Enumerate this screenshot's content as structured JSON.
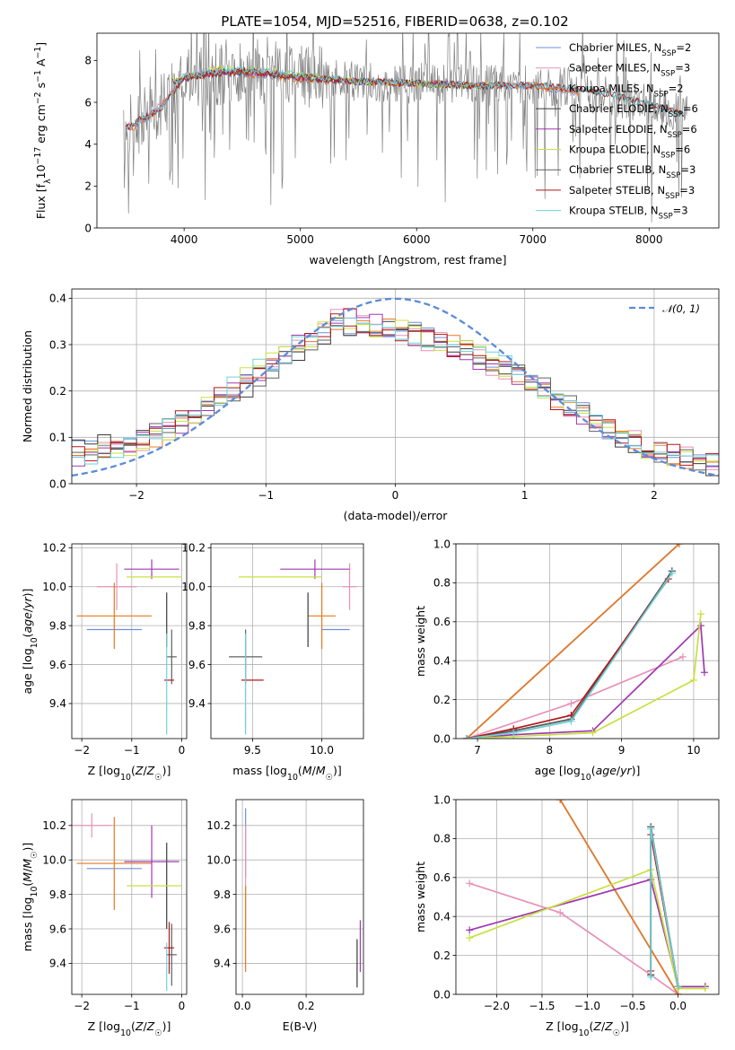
{
  "title": "PLATE=1054, MJD=52516, FIBERID=0638, z=0.102",
  "colors": {
    "chabrier_miles": "#6f8fdc",
    "salpeter_miles": "#e890b8",
    "kroupa_miles": "#e87820",
    "chabrier_elodie": "#3a3a3a",
    "salpeter_elodie": "#a038b0",
    "kroupa_elodie": "#c8e040",
    "chabrier_stelib": "#606060",
    "salpeter_stelib": "#b01818",
    "kroupa_stelib": "#6cd0d8",
    "observed": "#808080",
    "gaussian": "#5b8bd8"
  },
  "panels": {
    "spectrum": {
      "xlabel": "wavelength [Angstrom, rest frame]",
      "ylabel": "Flux [f$_\\lambda$10$^{-17}$ erg cm$^{-2}$ s$^{-1}$ A$^{-1}$]",
      "xticks": [
        "4000",
        "5000",
        "6000",
        "7000",
        "8000"
      ],
      "yticks": [
        "0",
        "2",
        "4",
        "6",
        "8"
      ],
      "legend": [
        "Chabrier MILES, N$_{SSP}$=2",
        "Salpeter MILES, N$_{SSP}$=3",
        "Kroupa MILES, N$_{SSP}$=2",
        "Chabrier ELODIE, N$_{SSP}$=6",
        "Salpeter ELODIE, N$_{SSP}$=6",
        "Kroupa ELODIE, N$_{SSP}$=6",
        "Chabrier STELIB, N$_{SSP}$=3",
        "Salpeter STELIB, N$_{SSP}$=3",
        "Kroupa STELIB, N$_{SSP}$=3"
      ]
    },
    "residuals": {
      "xlabel": "(data-model)/error",
      "ylabel": "Normed distribution",
      "xticks": [
        "−2",
        "−1",
        "0",
        "1",
        "2"
      ],
      "yticks": [
        "0.0",
        "0.1",
        "0.2",
        "0.3",
        "0.4"
      ],
      "legend": "𝒩(0, 1)"
    },
    "age_vs_z": {
      "xlabel": "Z [log$_{10}$($Z/Z_\\odot$)]",
      "ylabel": "age  [log$_{10}$($age/yr$)]",
      "xticks": [
        "−2",
        "−1",
        "0"
      ],
      "yticks": [
        "9.4",
        "9.6",
        "9.8",
        "10.0",
        "10.2"
      ]
    },
    "age_vs_mass": {
      "xlabel": "mass [log$_{10}$($M/M_\\odot$)]",
      "xticks": [
        "9.5",
        "10.0"
      ],
      "yticks": [
        "9.4",
        "9.6",
        "9.8",
        "10.0",
        "10.2"
      ]
    },
    "mw_vs_age": {
      "xlabel": "age  [log$_{10}$($age/yr$)]",
      "ylabel": "mass weight",
      "xticks": [
        "7",
        "8",
        "9",
        "10"
      ],
      "yticks": [
        "0.0",
        "0.2",
        "0.4",
        "0.6",
        "0.8",
        "1.0"
      ]
    },
    "mass_vs_z": {
      "xlabel": "Z [log$_{10}$($Z/Z_\\odot$)]",
      "ylabel": "mass [log$_{10}$($M/M_\\odot$)]",
      "xticks": [
        "−2",
        "−1",
        "0"
      ],
      "yticks": [
        "9.4",
        "9.6",
        "9.8",
        "10.0",
        "10.2"
      ]
    },
    "mass_vs_ebv": {
      "xlabel": "E(B-V)",
      "xticks": [
        "0.0",
        "0.2"
      ],
      "yticks": [
        "9.4",
        "9.6",
        "9.8",
        "10.0",
        "10.2"
      ]
    },
    "mw_vs_z": {
      "xlabel": "Z [log$_{10}$($Z/Z_\\odot$)]",
      "ylabel": "mass weight",
      "xticks": [
        "−2.0",
        "−1.5",
        "−1.0",
        "−0.5",
        "0.0"
      ],
      "yticks": [
        "0.0",
        "0.2",
        "0.4",
        "0.6",
        "0.8",
        "1.0"
      ]
    }
  },
  "chart_data": [
    {
      "type": "line",
      "panel": "spectrum",
      "xlim": [
        3250,
        8600
      ],
      "ylim": [
        0,
        9.3
      ],
      "series": [
        {
          "name": "Chabrier MILES, N$_{SSP}$=2",
          "x": [
            3500,
            3600,
            3800,
            4000,
            4300,
            4700,
            5000,
            5500,
            6000,
            6500,
            7000,
            7400
          ],
          "y": [
            4.7,
            4.9,
            5.8,
            7.2,
            7.4,
            7.3,
            7.1,
            7.0,
            6.9,
            6.8,
            6.8,
            6.4
          ]
        },
        {
          "name": "Salpeter MILES, N$_{SSP}$=3",
          "x": [
            3500,
            3600,
            3800,
            4000,
            4300,
            4700,
            5000,
            5500,
            6000,
            6500,
            7000,
            7400
          ],
          "y": [
            4.8,
            5.0,
            5.9,
            7.3,
            7.5,
            7.4,
            7.2,
            7.0,
            6.9,
            6.8,
            6.8,
            6.5
          ]
        },
        {
          "name": "Kroupa MILES, N$_{SSP}$=2",
          "x": [
            3500,
            3600,
            3800,
            4000,
            4300,
            4700,
            5000,
            5500,
            6000,
            6500,
            7000,
            7400
          ],
          "y": [
            4.7,
            4.9,
            5.8,
            7.2,
            7.4,
            7.3,
            7.1,
            7.0,
            6.9,
            6.8,
            6.8,
            6.4
          ]
        },
        {
          "name": "Chabrier ELODIE, N$_{SSP}$=6",
          "x": [
            3900,
            4300,
            4700,
            5000,
            5500,
            6000,
            6500,
            6800
          ],
          "y": [
            7.0,
            7.5,
            7.4,
            7.2,
            7.0,
            6.9,
            6.8,
            6.8
          ]
        },
        {
          "name": "Salpeter ELODIE, N$_{SSP}$=6",
          "x": [
            3900,
            4300,
            4700,
            5000,
            5500,
            6000,
            6500,
            6800
          ],
          "y": [
            7.0,
            7.5,
            7.4,
            7.2,
            7.0,
            6.9,
            6.8,
            6.8
          ]
        },
        {
          "name": "Kroupa ELODIE, N$_{SSP}$=6",
          "x": [
            3900,
            4300,
            4700,
            5000,
            5500,
            6000,
            6500,
            6800
          ],
          "y": [
            7.1,
            7.6,
            7.5,
            7.3,
            7.0,
            6.9,
            6.8,
            6.8
          ]
        },
        {
          "name": "Chabrier STELIB, N$_{SSP}$=3",
          "x": [
            3500,
            3800,
            4000,
            4500,
            5000,
            5500,
            6000,
            6500,
            7000,
            7500,
            8000,
            8300
          ],
          "y": [
            4.8,
            5.7,
            7.2,
            7.5,
            7.2,
            7.0,
            6.9,
            6.8,
            6.8,
            6.6,
            5.9,
            5.4
          ]
        },
        {
          "name": "Salpeter STELIB, N$_{SSP}$=3",
          "x": [
            3500,
            3800,
            4000,
            4500,
            5000,
            5500,
            6000,
            6500,
            7000,
            7500,
            8000,
            8300
          ],
          "y": [
            4.8,
            5.7,
            7.2,
            7.5,
            7.2,
            7.0,
            6.9,
            6.8,
            6.8,
            6.6,
            5.9,
            5.4
          ]
        },
        {
          "name": "Kroupa STELIB, N$_{SSP}$=3",
          "x": [
            3500,
            3800,
            4000,
            4500,
            5000,
            5500,
            6000,
            6500,
            7000,
            7500,
            8000,
            8300
          ],
          "y": [
            4.8,
            5.7,
            7.3,
            7.6,
            7.3,
            7.0,
            6.9,
            6.8,
            6.8,
            6.6,
            5.9,
            5.4
          ]
        }
      ]
    },
    {
      "type": "line",
      "panel": "residuals",
      "xlim": [
        -2.5,
        2.5
      ],
      "ylim": [
        0,
        0.42
      ],
      "bin_width": 0.1,
      "series": [
        {
          "name": "𝒩(0, 1)",
          "function": "gaussian",
          "mu": 0,
          "sigma": 1
        },
        {
          "name": "Chabrier MILES, N$_{SSP}$=2",
          "bin_centers": [
            -2.4,
            -2.0,
            -1.6,
            -1.2,
            -0.8,
            -0.4,
            0.0,
            0.4,
            0.8,
            1.2,
            1.6,
            2.0,
            2.4
          ],
          "values": [
            0.07,
            0.1,
            0.15,
            0.2,
            0.28,
            0.34,
            0.34,
            0.31,
            0.26,
            0.2,
            0.12,
            0.07,
            0.04
          ]
        },
        {
          "name": "Salpeter MILES, N$_{SSP}$=3",
          "bin_centers": [
            -2.4,
            -2.0,
            -1.6,
            -1.2,
            -0.8,
            -0.4,
            0.0,
            0.4,
            0.8,
            1.2,
            1.6,
            2.0,
            2.4
          ],
          "values": [
            0.06,
            0.09,
            0.14,
            0.21,
            0.29,
            0.36,
            0.33,
            0.3,
            0.25,
            0.19,
            0.13,
            0.07,
            0.05
          ]
        },
        {
          "name": "Kroupa MILES, N$_{SSP}$=2",
          "bin_centers": [
            -2.4,
            -2.0,
            -1.6,
            -1.2,
            -0.8,
            -0.4,
            0.0,
            0.4,
            0.8,
            1.2,
            1.6,
            2.0,
            2.4
          ],
          "values": [
            0.05,
            0.08,
            0.14,
            0.22,
            0.29,
            0.36,
            0.33,
            0.31,
            0.26,
            0.19,
            0.12,
            0.07,
            0.04
          ]
        }
      ]
    },
    {
      "type": "scatter",
      "panel": "age_vs_z",
      "xlim": [
        -2.2,
        0.1
      ],
      "ylim": [
        9.22,
        10.22
      ],
      "points": [
        {
          "x": -1.35,
          "y": 9.78,
          "xerr": 0.55,
          "yerr": 0.0
        },
        {
          "x": -1.3,
          "y": 10.0,
          "xerr": 0.4,
          "yerr": 0.12
        },
        {
          "x": -1.35,
          "y": 9.85,
          "xerr": 0.75,
          "yerr": 0.17
        },
        {
          "x": -0.3,
          "y": 9.83,
          "xerr": 0.0,
          "yerr": 0.14
        },
        {
          "x": -0.6,
          "y": 10.09,
          "xerr": 0.55,
          "yerr": 0.05
        },
        {
          "x": -0.55,
          "y": 10.05,
          "xerr": 0.55,
          "yerr": 0.0
        },
        {
          "x": -0.2,
          "y": 9.64,
          "xerr": 0.1,
          "yerr": 0.14
        },
        {
          "x": -0.25,
          "y": 9.52,
          "xerr": 0.1,
          "yerr": 0.0
        },
        {
          "x": -0.3,
          "y": 9.5,
          "xerr": 0.0,
          "yerr": 0.26
        }
      ]
    },
    {
      "type": "scatter",
      "panel": "age_vs_mass",
      "xlim": [
        9.2,
        10.3
      ],
      "ylim": [
        9.22,
        10.22
      ],
      "points": [
        {
          "x": 10.1,
          "y": 9.78,
          "xerr": 0.1,
          "yerr": 0.0
        },
        {
          "x": 10.2,
          "y": 10.0,
          "xerr": 0.05,
          "yerr": 0.12
        },
        {
          "x": 10.0,
          "y": 9.85,
          "xerr": 0.1,
          "yerr": 0.17
        },
        {
          "x": 9.9,
          "y": 9.83,
          "xerr": 0.0,
          "yerr": 0.14
        },
        {
          "x": 9.95,
          "y": 10.09,
          "xerr": 0.25,
          "yerr": 0.05
        },
        {
          "x": 9.7,
          "y": 10.05,
          "xerr": 0.3,
          "yerr": 0.0
        },
        {
          "x": 9.45,
          "y": 9.64,
          "xerr": 0.12,
          "yerr": 0.14
        },
        {
          "x": 9.5,
          "y": 9.52,
          "xerr": 0.08,
          "yerr": 0.0
        },
        {
          "x": 9.45,
          "y": 9.5,
          "xerr": 0.0,
          "yerr": 0.26
        }
      ]
    },
    {
      "type": "line",
      "panel": "mw_vs_age",
      "xlim": [
        6.7,
        10.35
      ],
      "ylim": [
        0,
        1
      ],
      "series": [
        {
          "name": "Chabrier MILES, N$_{SSP}$=2",
          "x": [
            6.85,
            9.8
          ],
          "y": [
            0.0,
            1.0
          ]
        },
        {
          "name": "Salpeter MILES, N$_{SSP}$=3",
          "x": [
            6.85,
            8.3,
            9.85
          ],
          "y": [
            0.0,
            0.18,
            0.42
          ]
        },
        {
          "name": "Kroupa MILES, N$_{SSP}$=2",
          "x": [
            6.85,
            9.8
          ],
          "y": [
            0.0,
            1.0
          ]
        },
        {
          "name": "Chabrier ELODIE, N$_{SSP}$=6",
          "x": [
            6.85,
            7.5,
            8.3,
            9.7
          ],
          "y": [
            0.0,
            0.04,
            0.1,
            0.86
          ]
        },
        {
          "name": "Salpeter ELODIE, N$_{SSP}$=6",
          "x": [
            6.85,
            7.5,
            8.6,
            10.1,
            10.15
          ],
          "y": [
            0.0,
            0.02,
            0.04,
            0.58,
            0.34
          ]
        },
        {
          "name": "Kroupa ELODIE, N$_{SSP}$=6",
          "x": [
            6.85,
            7.5,
            8.6,
            10.0,
            10.1
          ],
          "y": [
            0.0,
            0.01,
            0.03,
            0.3,
            0.64
          ]
        },
        {
          "name": "Chabrier STELIB, N$_{SSP}$=3",
          "x": [
            6.85,
            7.5,
            8.3,
            9.7
          ],
          "y": [
            0.0,
            0.04,
            0.1,
            0.86
          ]
        },
        {
          "name": "Salpeter STELIB, N$_{SSP}$=3",
          "x": [
            6.85,
            7.5,
            8.3,
            9.65
          ],
          "y": [
            0.0,
            0.05,
            0.12,
            0.82
          ]
        },
        {
          "name": "Kroupa STELIB, N$_{SSP}$=3",
          "x": [
            6.85,
            7.5,
            8.3,
            9.7
          ],
          "y": [
            0.0,
            0.03,
            0.09,
            0.85
          ]
        }
      ]
    },
    {
      "type": "scatter",
      "panel": "mass_vs_z",
      "xlim": [
        -2.2,
        0.1
      ],
      "ylim": [
        9.22,
        10.35
      ],
      "points": [
        {
          "x": -1.35,
          "y": 9.95,
          "xerr": 0.55,
          "yerr": 0.0
        },
        {
          "x": -1.8,
          "y": 10.2,
          "xerr": 0.4,
          "yerr": 0.07
        },
        {
          "x": -1.35,
          "y": 9.98,
          "xerr": 0.75,
          "yerr": 0.27
        },
        {
          "x": -0.3,
          "y": 9.85,
          "xerr": 0.0,
          "yerr": 0.25
        },
        {
          "x": -0.6,
          "y": 9.99,
          "xerr": 0.55,
          "yerr": 0.21
        },
        {
          "x": -0.55,
          "y": 9.85,
          "xerr": 0.55,
          "yerr": 0.0
        },
        {
          "x": -0.2,
          "y": 9.45,
          "xerr": 0.1,
          "yerr": 0.18
        },
        {
          "x": -0.25,
          "y": 9.49,
          "xerr": 0.1,
          "yerr": 0.15
        },
        {
          "x": -0.3,
          "y": 9.38,
          "xerr": 0.0,
          "yerr": 0.14
        }
      ]
    },
    {
      "type": "scatter",
      "panel": "mass_vs_ebv",
      "xlim": [
        -0.02,
        0.38
      ],
      "ylim": [
        9.22,
        10.35
      ],
      "points": [
        {
          "x": 0.01,
          "y": 10.1,
          "xerr": 0.0,
          "yerr": 0.2
        },
        {
          "x": 0.01,
          "y": 9.9,
          "xerr": 0.0,
          "yerr": 0.3
        },
        {
          "x": 0.01,
          "y": 9.6,
          "xerr": 0.0,
          "yerr": 0.25
        },
        {
          "x": 0.36,
          "y": 9.4,
          "xerr": 0.0,
          "yerr": 0.14
        },
        {
          "x": 0.37,
          "y": 9.5,
          "xerr": 0.0,
          "yerr": 0.15
        }
      ]
    },
    {
      "type": "line",
      "panel": "mw_vs_z",
      "xlim": [
        -2.45,
        0.45
      ],
      "ylim": [
        0,
        1
      ],
      "series": [
        {
          "name": "Chabrier MILES, N$_{SSP}$=2",
          "x": [
            -1.3,
            0.0
          ],
          "y": [
            1.0,
            0.0
          ]
        },
        {
          "name": "Salpeter MILES, N$_{SSP}$=3",
          "x": [
            -2.3,
            -1.3,
            -0.3,
            0.0
          ],
          "y": [
            0.57,
            0.42,
            0.1,
            0.0
          ]
        },
        {
          "name": "Kroupa MILES, N$_{SSP}$=2",
          "x": [
            -1.3,
            0.0
          ],
          "y": [
            1.0,
            0.0
          ]
        },
        {
          "name": "Chabrier ELODIE, N$_{SSP}$=6",
          "x": [
            -0.3,
            -0.3,
            0.0,
            0.3
          ],
          "y": [
            0.1,
            0.86,
            0.04,
            0.04
          ]
        },
        {
          "name": "Salpeter ELODIE, N$_{SSP}$=6",
          "x": [
            -2.3,
            -0.3,
            0.0,
            0.3
          ],
          "y": [
            0.33,
            0.59,
            0.04,
            0.04
          ]
        },
        {
          "name": "Kroupa ELODIE, N$_{SSP}$=6",
          "x": [
            -2.3,
            -0.3,
            0.0,
            0.3
          ],
          "y": [
            0.29,
            0.64,
            0.03,
            0.03
          ]
        },
        {
          "name": "Chabrier STELIB, N$_{SSP}$=3",
          "x": [
            -0.3,
            -0.3,
            0.0
          ],
          "y": [
            0.1,
            0.86,
            0.04
          ]
        },
        {
          "name": "Salpeter STELIB, N$_{SSP}$=3",
          "x": [
            -0.3,
            -0.3,
            0.0
          ],
          "y": [
            0.12,
            0.82,
            0.04
          ]
        },
        {
          "name": "Kroupa STELIB, N$_{SSP}$=3",
          "x": [
            -0.3,
            -0.3,
            0.0
          ],
          "y": [
            0.09,
            0.85,
            0.04
          ]
        }
      ]
    }
  ]
}
